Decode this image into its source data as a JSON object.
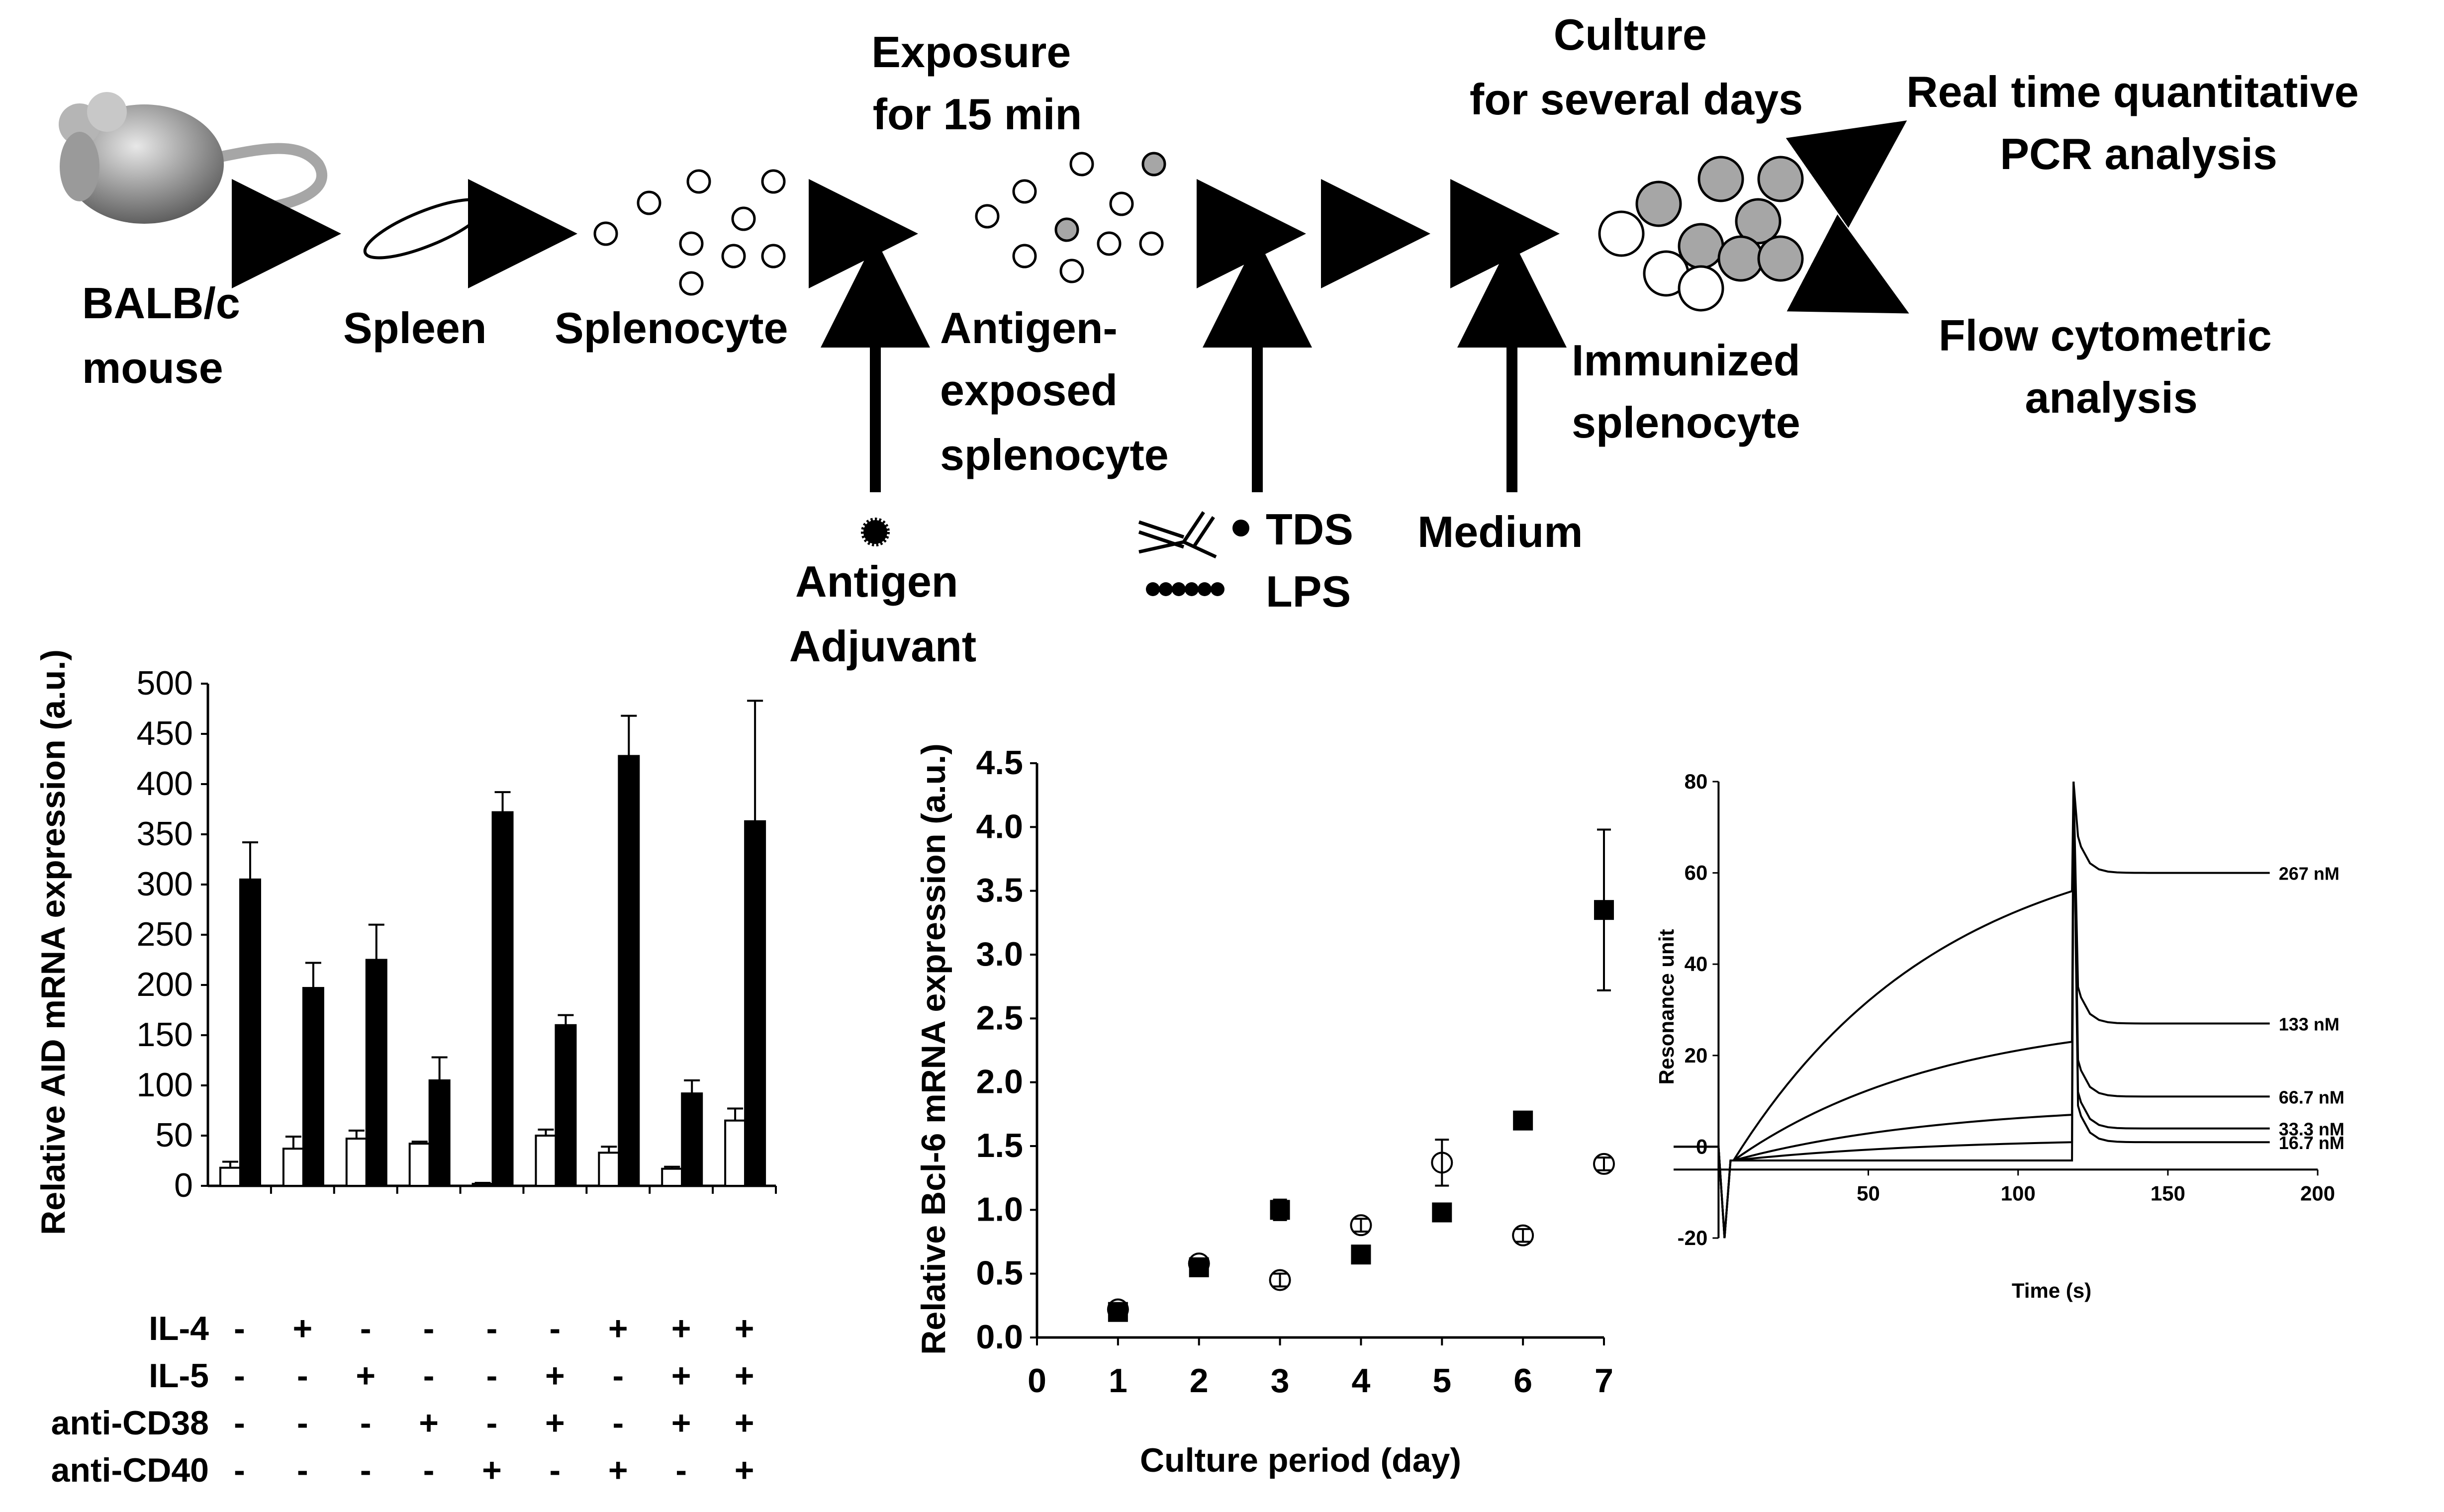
{
  "diagram": {
    "nodes": {
      "mouse": [
        "BALB/c",
        "mouse"
      ],
      "spleen": "Spleen",
      "splenocyte": "Splenocyte",
      "exposure": [
        "Exposure",
        "for 15 min"
      ],
      "antigen_exposed": [
        "Antigen-",
        "exposed",
        "splenocyte"
      ],
      "culture": [
        "Culture",
        "for several days"
      ],
      "immunized": [
        "Immunized",
        "splenocyte"
      ],
      "pcr": [
        "Real time quantitative",
        "PCR analysis"
      ],
      "flow": [
        "Flow cytometric",
        "analysis"
      ],
      "antigen_adjuvant": [
        "Antigen",
        "Adjuvant"
      ],
      "tds": "TDS",
      "lps": "LPS",
      "medium": "Medium"
    },
    "colors": {
      "grey_cell": "#a6a6a6",
      "mouse_dark": "#555555",
      "mouse_light": "#e8e8e8",
      "tail": "#a6a6a6"
    }
  },
  "chart_data": [
    {
      "type": "bar",
      "ylabel": "Relative AID mRNA expression (a.u.)",
      "ylim": [
        0,
        500
      ],
      "yticks": [
        0,
        50,
        100,
        150,
        200,
        250,
        300,
        350,
        400,
        450,
        500
      ],
      "series": [
        {
          "fill": "#ffffff",
          "values": [
            18,
            37,
            47,
            42,
            2,
            50,
            33,
            17,
            65
          ],
          "errors": [
            6,
            12,
            8,
            2,
            1,
            6,
            6,
            2,
            12
          ]
        },
        {
          "fill": "#000000",
          "values": [
            305,
            197,
            225,
            105,
            372,
            160,
            428,
            92,
            363
          ],
          "errors": [
            37,
            25,
            35,
            23,
            20,
            10,
            40,
            13,
            120
          ]
        }
      ],
      "treatments": [
        {
          "name": "IL-4",
          "signs": [
            "-",
            "+",
            "-",
            "-",
            "-",
            "-",
            "+",
            "+",
            "+"
          ]
        },
        {
          "name": "IL-5",
          "signs": [
            "-",
            "-",
            "+",
            "-",
            "-",
            "+",
            "-",
            "+",
            "+"
          ]
        },
        {
          "name": "anti-CD38",
          "signs": [
            "-",
            "-",
            "-",
            "+",
            "-",
            "+",
            "-",
            "+",
            "+"
          ]
        },
        {
          "name": "anti-CD40",
          "signs": [
            "-",
            "-",
            "-",
            "-",
            "+",
            "-",
            "+",
            "-",
            "+"
          ]
        }
      ]
    },
    {
      "type": "scatter",
      "xlabel": "Culture period (day)",
      "ylabel": "Relative Bcl-6 mRNA expression (a.u.)",
      "xlim": [
        0,
        7
      ],
      "ylim": [
        0,
        4.5
      ],
      "xticks": [
        0,
        1,
        2,
        3,
        4,
        5,
        6,
        7
      ],
      "yticks": [
        "0.0",
        "0.5",
        "1.0",
        "1.5",
        "2.0",
        "2.5",
        "3.0",
        "3.5",
        "4.0",
        "4.5"
      ],
      "series": [
        {
          "marker": "filled-square",
          "x": [
            1,
            2,
            3,
            4,
            5,
            6,
            7
          ],
          "y": [
            0.2,
            0.55,
            1.0,
            0.65,
            0.98,
            1.7,
            3.35
          ],
          "err": [
            0.03,
            0.04,
            0.08,
            0.03,
            0.03,
            0.03,
            0.63
          ]
        },
        {
          "marker": "open-circle",
          "x": [
            1,
            2,
            3,
            4,
            5,
            6,
            7
          ],
          "y": [
            0.22,
            0.58,
            0.45,
            0.88,
            1.37,
            0.8,
            1.36
          ],
          "err": [
            0.03,
            0.03,
            0.05,
            0.05,
            0.18,
            0.05,
            0.05
          ]
        }
      ]
    },
    {
      "type": "line",
      "xlabel": "Time (s)",
      "ylabel": "Resonance unit",
      "xlim": [
        -15,
        200
      ],
      "ylim": [
        -20,
        80
      ],
      "xticks": [
        50,
        100,
        150,
        200
      ],
      "yticks": [
        -20,
        0,
        20,
        40,
        60,
        80
      ],
      "injection_end": 118,
      "series": [
        {
          "name": "267 nM",
          "assoc_end": 56,
          "plateau": 60
        },
        {
          "name": "133 nM",
          "assoc_end": 23,
          "plateau": 27
        },
        {
          "name": "66.7 nM",
          "assoc_end": 7,
          "plateau": 11
        },
        {
          "name": "33.3 nM",
          "assoc_end": 1,
          "plateau": 4
        },
        {
          "name": "16.7 nM",
          "assoc_end": -3,
          "plateau": 1
        }
      ]
    }
  ]
}
